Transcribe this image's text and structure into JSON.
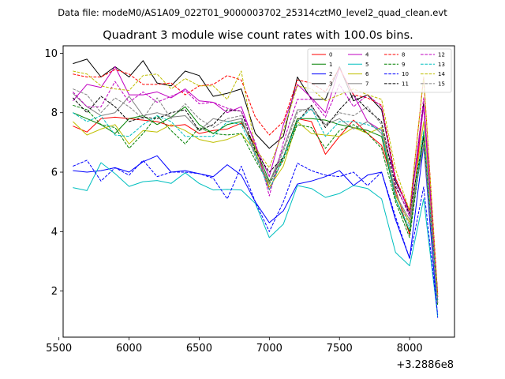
{
  "suptitle": "Data file: modeM0/AS1A09_022T01_9000003702_25314cztM0_level2_quad_clean.evt",
  "chart_data": {
    "type": "line",
    "title": "Quadrant 3 module wise count rates with 100.0s bins.",
    "xlabel": "",
    "ylabel": "",
    "x_offset_label": "+3.2886e8",
    "xlim": [
      5530,
      8320
    ],
    "ylim": [
      0.45,
      10.25
    ],
    "xticks": [
      5500,
      6000,
      6500,
      7000,
      7500,
      8000
    ],
    "yticks": [
      2,
      4,
      6,
      8,
      10
    ],
    "legend_position": "top-right",
    "x": [
      5600,
      5700,
      5800,
      5900,
      6000,
      6100,
      6200,
      6300,
      6400,
      6500,
      6600,
      6700,
      6800,
      6900,
      7000,
      7100,
      7200,
      7300,
      7400,
      7500,
      7600,
      7700,
      7800,
      7900,
      8000,
      8100,
      8200
    ],
    "series": [
      {
        "name": "0",
        "color": "#ff0000",
        "dash": "solid",
        "values": [
          7.55,
          7.35,
          7.8,
          7.85,
          7.8,
          7.75,
          7.7,
          7.55,
          7.6,
          7.3,
          7.4,
          7.45,
          7.65,
          6.9,
          5.4,
          6.5,
          7.8,
          7.7,
          6.6,
          7.2,
          7.75,
          7.3,
          6.9,
          5.4,
          3.9,
          8.3,
          1.8
        ]
      },
      {
        "name": "1",
        "color": "#008000",
        "dash": "solid",
        "values": [
          8.0,
          7.8,
          7.6,
          7.3,
          7.8,
          7.9,
          7.6,
          7.85,
          8.2,
          7.6,
          7.3,
          7.6,
          7.7,
          6.8,
          5.7,
          6.5,
          7.8,
          7.8,
          7.75,
          7.6,
          7.5,
          7.4,
          7.2,
          5.1,
          4.0,
          7.2,
          1.6
        ]
      },
      {
        "name": "2",
        "color": "#0000ff",
        "dash": "solid",
        "values": [
          6.05,
          6.0,
          6.05,
          6.15,
          6.0,
          6.35,
          6.55,
          6.0,
          6.05,
          5.95,
          5.85,
          6.25,
          5.9,
          5.0,
          4.3,
          4.7,
          5.6,
          5.7,
          5.85,
          6.05,
          5.55,
          5.9,
          6.0,
          4.4,
          3.1,
          6.9,
          1.1
        ]
      },
      {
        "name": "3",
        "color": "#000000",
        "dash": "solid",
        "values": [
          9.65,
          9.8,
          9.2,
          9.55,
          9.2,
          9.75,
          9.0,
          8.9,
          9.4,
          9.25,
          8.55,
          8.65,
          8.8,
          7.3,
          6.8,
          7.2,
          9.2,
          8.45,
          8.45,
          9.55,
          8.4,
          8.6,
          8.1,
          5.7,
          4.7,
          8.3,
          1.9
        ]
      },
      {
        "name": "4",
        "color": "#c000c0",
        "dash": "solid",
        "values": [
          8.4,
          8.95,
          8.85,
          9.55,
          8.6,
          8.6,
          8.7,
          8.5,
          8.8,
          8.4,
          8.35,
          8.0,
          8.2,
          6.9,
          5.85,
          7.6,
          8.95,
          8.5,
          8.0,
          9.5,
          8.6,
          7.7,
          7.4,
          5.8,
          4.6,
          8.2,
          1.8
        ]
      },
      {
        "name": "5",
        "color": "#00bfbf",
        "dash": "solid",
        "values": [
          5.48,
          5.38,
          6.32,
          5.95,
          5.52,
          5.68,
          5.72,
          5.62,
          5.98,
          5.62,
          5.4,
          5.42,
          5.4,
          4.95,
          3.8,
          4.25,
          5.55,
          5.45,
          5.15,
          5.28,
          5.55,
          5.45,
          5.1,
          3.3,
          2.85,
          5.1,
          1.15
        ]
      },
      {
        "name": "6",
        "color": "#bfbf00",
        "dash": "solid",
        "values": [
          7.7,
          7.25,
          7.45,
          7.6,
          6.95,
          7.4,
          7.35,
          7.6,
          7.4,
          7.1,
          7.0,
          7.1,
          7.3,
          6.7,
          5.5,
          6.2,
          7.7,
          7.3,
          7.25,
          7.2,
          7.5,
          7.3,
          7.5,
          5.2,
          4.3,
          7.7,
          1.6
        ]
      },
      {
        "name": "7",
        "color": "#808080",
        "dash": "solid",
        "values": [
          8.65,
          8.2,
          7.9,
          8.0,
          8.55,
          7.9,
          8.0,
          7.85,
          7.9,
          7.4,
          7.8,
          7.7,
          7.8,
          6.6,
          5.65,
          6.8,
          8.1,
          8.1,
          7.6,
          7.8,
          7.45,
          7.7,
          7.3,
          5.25,
          4.4,
          6.9,
          1.7
        ]
      },
      {
        "name": "8",
        "color": "#ff0000",
        "dash": "dashed",
        "values": [
          9.3,
          9.2,
          9.2,
          9.45,
          9.3,
          8.95,
          8.95,
          9.0,
          8.6,
          8.9,
          8.95,
          9.25,
          9.1,
          7.85,
          7.25,
          7.7,
          9.1,
          9.0,
          8.7,
          9.5,
          8.6,
          8.5,
          8.25,
          5.8,
          4.7,
          9.2,
          1.9
        ]
      },
      {
        "name": "9",
        "color": "#008000",
        "dash": "dashed",
        "values": [
          8.25,
          8.1,
          7.6,
          7.5,
          6.8,
          7.3,
          7.9,
          7.4,
          6.95,
          7.5,
          7.3,
          7.25,
          7.3,
          6.4,
          5.6,
          6.4,
          7.6,
          7.5,
          6.8,
          7.4,
          7.6,
          7.3,
          6.8,
          5.0,
          3.8,
          7.3,
          1.5
        ]
      },
      {
        "name": "10",
        "color": "#0000ff",
        "dash": "dashed",
        "values": [
          6.2,
          6.4,
          5.7,
          6.15,
          5.9,
          6.4,
          5.85,
          6.0,
          6.0,
          5.95,
          5.8,
          5.1,
          6.2,
          5.0,
          4.0,
          5.0,
          6.3,
          6.05,
          5.9,
          5.85,
          6.0,
          5.55,
          6.0,
          4.5,
          3.1,
          5.5,
          1.2
        ]
      },
      {
        "name": "11",
        "color": "#000000",
        "dash": "dashed",
        "values": [
          8.5,
          8.0,
          8.55,
          8.2,
          7.7,
          7.85,
          7.8,
          8.0,
          8.1,
          7.4,
          7.6,
          8.1,
          8.05,
          6.7,
          6.0,
          6.5,
          7.7,
          8.25,
          7.5,
          8.1,
          8.6,
          8.1,
          7.7,
          5.5,
          4.6,
          7.2,
          1.7
        ]
      },
      {
        "name": "12",
        "color": "#c000c0",
        "dash": "dashed",
        "values": [
          8.7,
          8.2,
          8.2,
          9.05,
          8.35,
          8.7,
          8.35,
          8.55,
          8.75,
          8.3,
          8.35,
          8.15,
          8.05,
          7.0,
          5.2,
          7.0,
          8.45,
          8.45,
          7.85,
          8.95,
          8.2,
          8.6,
          8.2,
          5.6,
          4.5,
          8.5,
          1.8
        ]
      },
      {
        "name": "13",
        "color": "#00bfbf",
        "dash": "dashed",
        "values": [
          8.0,
          7.7,
          7.9,
          7.25,
          7.2,
          7.6,
          7.9,
          7.7,
          7.2,
          7.2,
          7.2,
          7.7,
          7.6,
          6.6,
          5.4,
          6.5,
          7.7,
          8.15,
          7.2,
          7.7,
          7.7,
          7.6,
          7.4,
          5.1,
          4.1,
          7.4,
          1.6
        ]
      },
      {
        "name": "14",
        "color": "#bfbf00",
        "dash": "dashed",
        "values": [
          9.4,
          9.3,
          8.9,
          8.8,
          8.75,
          9.25,
          9.3,
          8.8,
          9.15,
          8.9,
          8.9,
          8.45,
          9.4,
          6.8,
          6.15,
          7.4,
          8.9,
          8.8,
          8.4,
          8.6,
          8.8,
          8.6,
          8.45,
          6.1,
          4.7,
          9.2,
          1.8
        ]
      },
      {
        "name": "15",
        "color": "#808080",
        "dash": "dashed",
        "values": [
          8.8,
          8.6,
          8.0,
          8.5,
          8.2,
          7.8,
          8.5,
          7.8,
          8.3,
          7.8,
          7.5,
          7.8,
          7.9,
          6.5,
          5.6,
          6.7,
          8.0,
          8.2,
          7.6,
          8.0,
          7.9,
          8.2,
          7.6,
          5.3,
          4.2,
          7.0,
          1.6
        ]
      }
    ]
  }
}
